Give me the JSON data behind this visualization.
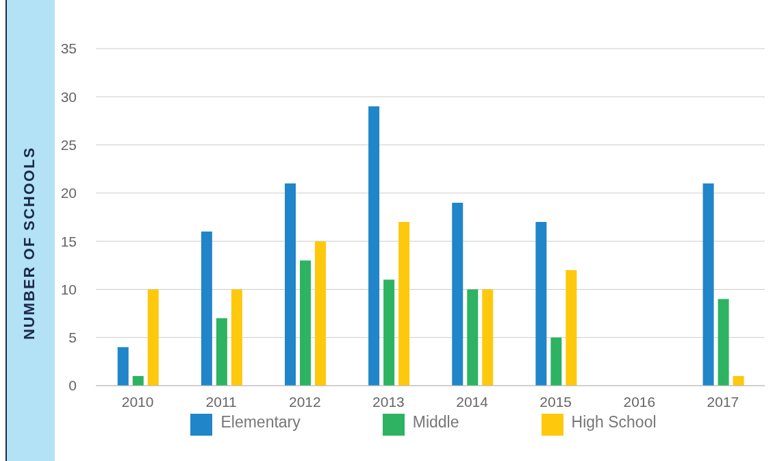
{
  "chart_data": {
    "type": "bar",
    "ylabel": "NUMBER OF SCHOOLS",
    "categories": [
      "2010",
      "2011",
      "2012",
      "2013",
      "2014",
      "2015",
      "2016",
      "2017"
    ],
    "series": [
      {
        "name": "Elementary",
        "color": "#2085c9",
        "values": [
          4,
          16,
          21,
          29,
          19,
          17,
          null,
          21
        ]
      },
      {
        "name": "Middle",
        "color": "#2db361",
        "values": [
          1,
          7,
          13,
          11,
          10,
          5,
          null,
          9
        ]
      },
      {
        "name": "High School",
        "color": "#fec80c",
        "values": [
          10,
          10,
          15,
          17,
          10,
          12,
          null,
          1
        ]
      }
    ],
    "ylim": [
      0,
      35
    ],
    "yticks": [
      0,
      5,
      10,
      15,
      20,
      25,
      30,
      35
    ],
    "grid": "y",
    "legend": "bottom"
  }
}
